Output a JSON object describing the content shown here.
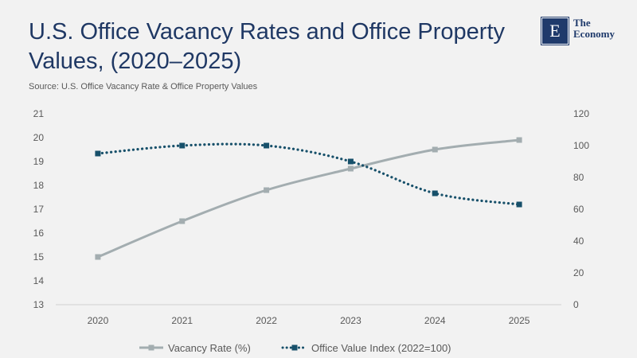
{
  "title": "U.S. Office Vacancy Rates and Office Property Values, (2020–2025)",
  "source": "Source:  U.S. Office Vacancy Rate & Office Property Values",
  "logo": {
    "mark": "E",
    "line1": "The",
    "line2": "Economy"
  },
  "colors": {
    "vacancy": "#a3adb0",
    "value": "#17506a",
    "background": "#f2f2f2"
  },
  "chart_data": {
    "type": "line",
    "categories": [
      "2020",
      "2021",
      "2022",
      "2023",
      "2024",
      "2025"
    ],
    "y_left": {
      "min": 13,
      "max": 21,
      "step": 1,
      "ticks": [
        "13",
        "14",
        "15",
        "16",
        "17",
        "18",
        "19",
        "20",
        "21"
      ]
    },
    "y_right": {
      "min": 0,
      "max": 120,
      "step": 20,
      "ticks": [
        "0",
        "20",
        "40",
        "60",
        "80",
        "100",
        "120"
      ]
    },
    "grid": false,
    "legend_position": "bottom",
    "series": [
      {
        "name": "Vacancy Rate (%)",
        "axis": "left",
        "style": "solid",
        "values": [
          15.0,
          16.5,
          17.8,
          18.7,
          19.5,
          19.9
        ]
      },
      {
        "name": "Office Value Index (2022=100)",
        "axis": "right",
        "style": "dotted",
        "values": [
          95,
          100,
          100,
          90,
          70,
          63
        ]
      }
    ]
  }
}
